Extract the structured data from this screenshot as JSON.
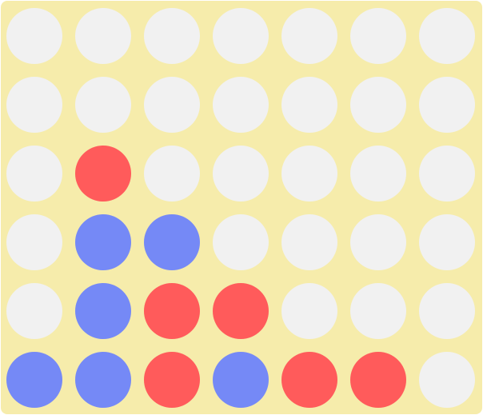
{
  "game": {
    "name": "connect-four",
    "columns": 7,
    "rows": 6,
    "colors": {
      "board": "#f6ecab",
      "empty": "#f1f1f1",
      "red": "#ff5b5b",
      "blue": "#7589f6"
    },
    "grid": [
      [
        "empty",
        "empty",
        "empty",
        "empty",
        "empty",
        "empty",
        "empty"
      ],
      [
        "empty",
        "empty",
        "empty",
        "empty",
        "empty",
        "empty",
        "empty"
      ],
      [
        "empty",
        "red",
        "empty",
        "empty",
        "empty",
        "empty",
        "empty"
      ],
      [
        "empty",
        "blue",
        "blue",
        "empty",
        "empty",
        "empty",
        "empty"
      ],
      [
        "empty",
        "blue",
        "red",
        "red",
        "empty",
        "empty",
        "empty"
      ],
      [
        "blue",
        "blue",
        "red",
        "blue",
        "red",
        "red",
        "empty"
      ]
    ]
  }
}
